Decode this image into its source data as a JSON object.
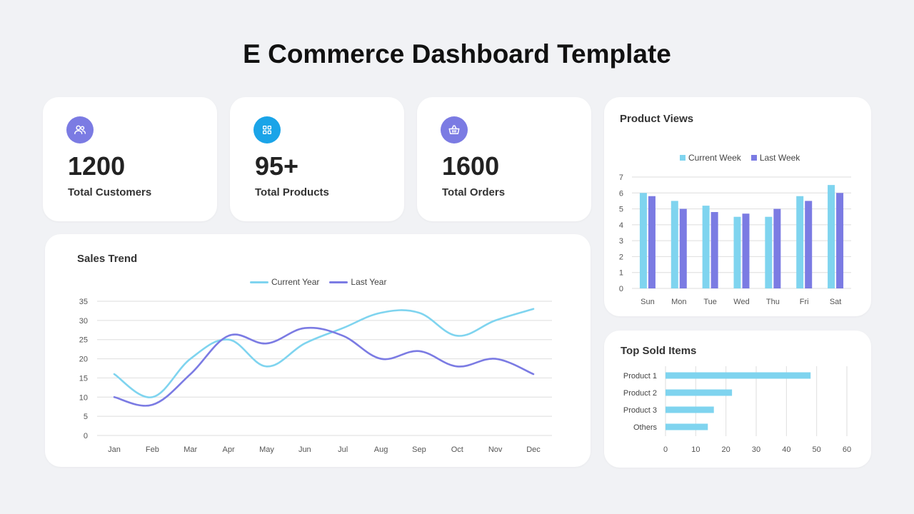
{
  "page_title": "E Commerce Dashboard Template",
  "colors": {
    "light_blue": "#7fd4ef",
    "purple": "#7b7be3",
    "icon_blue": "#1aa4e8"
  },
  "kpis": [
    {
      "value": "1200",
      "label": "Total Customers",
      "icon": "users-icon",
      "icon_color": "#7b7be3"
    },
    {
      "value": "95+",
      "label": "Total Products",
      "icon": "grid-icon",
      "icon_color": "#1aa4e8"
    },
    {
      "value": "1600",
      "label": "Total Orders",
      "icon": "basket-icon",
      "icon_color": "#7b7be3"
    }
  ],
  "chart_data": [
    {
      "type": "line",
      "title": "Sales Trend",
      "categories": [
        "Jan",
        "Feb",
        "Mar",
        "Apr",
        "May",
        "Jun",
        "Jul",
        "Aug",
        "Sep",
        "Oct",
        "Nov",
        "Dec"
      ],
      "series": [
        {
          "name": "Current Year",
          "values": [
            16,
            10,
            20,
            25,
            18,
            24,
            28,
            32,
            32,
            26,
            30,
            33
          ],
          "color": "#7fd4ef"
        },
        {
          "name": "Last Year",
          "values": [
            10,
            8,
            16,
            26,
            24,
            28,
            26,
            20,
            22,
            18,
            20,
            16
          ],
          "color": "#7b7be3"
        }
      ],
      "ylim": [
        0,
        35
      ],
      "yticks": [
        0,
        5,
        10,
        15,
        20,
        25,
        30,
        35
      ],
      "grid": true,
      "legend": "top-center"
    },
    {
      "type": "bar",
      "title": "Product Views",
      "categories": [
        "Sun",
        "Mon",
        "Tue",
        "Wed",
        "Thu",
        "Fri",
        "Sat"
      ],
      "series": [
        {
          "name": "Current Week",
          "values": [
            6,
            5.5,
            5.2,
            4.5,
            4.5,
            5.8,
            6.5
          ],
          "color": "#7fd4ef"
        },
        {
          "name": "Last Week",
          "values": [
            5.8,
            5,
            4.8,
            4.7,
            5,
            5.5,
            6
          ],
          "color": "#7b7be3"
        }
      ],
      "ylim": [
        0,
        7
      ],
      "yticks": [
        0,
        1,
        2,
        3,
        4,
        5,
        6,
        7
      ],
      "grid": true,
      "legend": "top-center"
    },
    {
      "type": "bar",
      "orientation": "horizontal",
      "title": "Top Sold Items",
      "categories": [
        "Product 1",
        "Product 2",
        "Product 3",
        "Others"
      ],
      "values": [
        48,
        22,
        16,
        14
      ],
      "color": "#7fd4ef",
      "xlim": [
        0,
        60
      ],
      "xticks": [
        0,
        10,
        20,
        30,
        40,
        50,
        60
      ],
      "grid": true
    }
  ]
}
